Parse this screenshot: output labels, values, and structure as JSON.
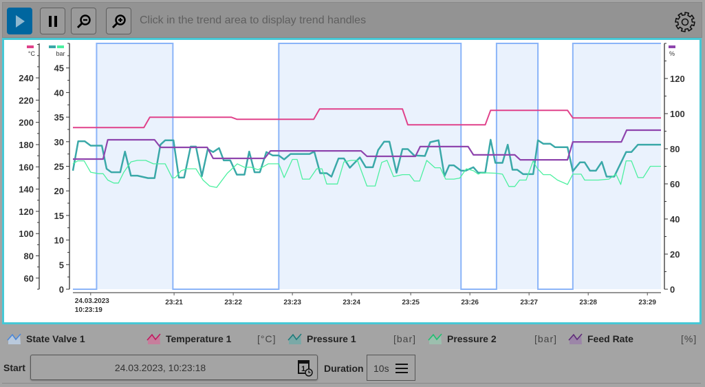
{
  "toolbar": {
    "play_icon": "play-icon",
    "pause_icon": "pause-icon",
    "zoom_out_icon": "zoom-out-icon",
    "zoom_in_icon": "zoom-in-icon",
    "hint": "Click in the trend area to display trend handles",
    "settings_icon": "gear-icon",
    "accent": "#00669f"
  },
  "chart_data": {
    "type": "line",
    "x_ticks": [
      "23:21",
      "23:22",
      "23:23",
      "23:24",
      "23:25",
      "23:26",
      "23:27",
      "23:28",
      "23:29"
    ],
    "x_first_label": [
      "24.03.2023",
      "10:23:19"
    ],
    "x_first_tick": "23:19.59",
    "xlim": [
      "23:19.29",
      "23:29.23"
    ],
    "axes": {
      "temperature": {
        "unit": "°C",
        "ticks": [
          60,
          80,
          100,
          120,
          140,
          160,
          180,
          200,
          220,
          240
        ],
        "ylim": [
          50,
          271
        ],
        "color": "#e0418a"
      },
      "pressure": {
        "unit": "bar",
        "ticks": [
          0,
          5,
          10,
          15,
          20,
          25,
          30,
          35,
          40,
          45
        ],
        "ylim": [
          0,
          50
        ],
        "colors": [
          "#3aa8a8",
          "#4cf0a0"
        ]
      },
      "percent": {
        "unit": "%",
        "ticks": [
          0,
          20,
          40,
          60,
          80,
          100,
          120
        ],
        "ylim": [
          0,
          140
        ],
        "color": "#8e44ad"
      }
    },
    "series": [
      {
        "name": "State Valve 1",
        "axis": "state",
        "color": "#8ab4f8",
        "fill": "#eaf2fd",
        "step": true,
        "points": [
          [
            "23:19.29",
            0
          ],
          [
            "23:19.69",
            1
          ],
          [
            "23:20.98",
            0
          ],
          [
            "23:22.77",
            1
          ],
          [
            "23:25.85",
            0
          ],
          [
            "23:26.45",
            1
          ],
          [
            "23:27.15",
            0
          ],
          [
            "23:27.74",
            1
          ],
          [
            "23:29.23",
            1
          ]
        ]
      },
      {
        "name": "Temperature 1",
        "axis": "temperature",
        "color": "#e0418a",
        "points": [
          [
            "23:19.29",
            195.3
          ],
          [
            "23:20.49",
            195.3
          ],
          [
            "23:20.59",
            204.6
          ],
          [
            "23:21.97",
            204.6
          ],
          [
            "23:22.06",
            202.8
          ],
          [
            "23:23.36",
            202.8
          ],
          [
            "23:23.46",
            212.0
          ],
          [
            "23:24.86",
            212.0
          ],
          [
            "23:24.95",
            197.8
          ],
          [
            "23:26.26",
            197.8
          ],
          [
            "23:26.35",
            210.8
          ],
          [
            "23:27.65",
            210.8
          ],
          [
            "23:27.74",
            204.0
          ],
          [
            "23:29.23",
            204.0
          ]
        ]
      },
      {
        "name": "Pressure 1",
        "axis": "pressure",
        "color": "#3aa8a8",
        "points": [
          [
            "23:19.29",
            24.1
          ],
          [
            "23:19.38",
            30.1
          ],
          [
            "23:19.49",
            30.1
          ],
          [
            "23:19.59",
            29.2
          ],
          [
            "23:19.78",
            29.2
          ],
          [
            "23:19.86",
            24.5
          ],
          [
            "23:19.94",
            23.8
          ],
          [
            "23:20.09",
            23.8
          ],
          [
            "23:20.17",
            28.0
          ],
          [
            "23:20.27",
            23.1
          ],
          [
            "23:20.38",
            23.1
          ],
          [
            "23:20.56",
            22.6
          ],
          [
            "23:20.67",
            22.6
          ],
          [
            "23:20.77",
            29.4
          ],
          [
            "23:20.85",
            30.3
          ],
          [
            "23:20.99",
            30.3
          ],
          [
            "23:21.08",
            22.7
          ],
          [
            "23:21.17",
            22.7
          ],
          [
            "23:21.28",
            29.0
          ],
          [
            "23:21.37",
            29.0
          ],
          [
            "23:21.47",
            23.0
          ],
          [
            "23:21.57",
            28.5
          ],
          [
            "23:21.66",
            27.9
          ],
          [
            "23:21.76",
            28.7
          ],
          [
            "23:21.84",
            26.2
          ],
          [
            "23:21.95",
            26.2
          ],
          [
            "23:22.06",
            23.3
          ],
          [
            "23:22.19",
            23.3
          ],
          [
            "23:22.27",
            28.0
          ],
          [
            "23:22.36",
            23.8
          ],
          [
            "23:22.45",
            23.8
          ],
          [
            "23:22.56",
            27.9
          ],
          [
            "23:22.67",
            27.2
          ],
          [
            "23:22.77",
            27.2
          ],
          [
            "23:22.86",
            26.4
          ],
          [
            "23:22.97",
            27.5
          ],
          [
            "23:23.29",
            27.5
          ],
          [
            "23:23.37",
            28.0
          ],
          [
            "23:23.47",
            23.6
          ],
          [
            "23:23.58",
            23.6
          ],
          [
            "23:23.66",
            22.9
          ],
          [
            "23:23.78",
            26.6
          ],
          [
            "23:23.87",
            26.6
          ],
          [
            "23:23.97",
            24.7
          ],
          [
            "23:24.01",
            25.2
          ],
          [
            "23:24.14",
            26.8
          ],
          [
            "23:24.24",
            24.8
          ],
          [
            "23:24.36",
            24.8
          ],
          [
            "23:24.45",
            28.3
          ],
          [
            "23:24.55",
            30.0
          ],
          [
            "23:24.64",
            30.0
          ],
          [
            "23:24.76",
            23.7
          ],
          [
            "23:24.86",
            28.5
          ],
          [
            "23:24.95",
            28.5
          ],
          [
            "23:25.06",
            27.2
          ],
          [
            "23:25.24",
            27.1
          ],
          [
            "23:25.33",
            29.9
          ],
          [
            "23:25.47",
            30.3
          ],
          [
            "23:25.57",
            23.0
          ],
          [
            "23:25.65",
            25.2
          ],
          [
            "23:25.73",
            25.2
          ],
          [
            "23:25.85",
            24.1
          ],
          [
            "23:25.93",
            24.1
          ],
          [
            "23:26.06",
            24.8
          ],
          [
            "23:26.14",
            23.7
          ],
          [
            "23:26.26",
            23.7
          ],
          [
            "23:26.35",
            30.4
          ],
          [
            "23:26.43",
            25.7
          ],
          [
            "23:26.55",
            25.7
          ],
          [
            "23:26.64",
            29.4
          ],
          [
            "23:26.72",
            24.3
          ],
          [
            "23:26.80",
            24.3
          ],
          [
            "23:26.90",
            23.4
          ],
          [
            "23:27.07",
            23.4
          ],
          [
            "23:27.15",
            30.3
          ],
          [
            "23:27.24",
            29.6
          ],
          [
            "23:27.36",
            29.6
          ],
          [
            "23:27.44",
            28.9
          ],
          [
            "23:27.65",
            28.9
          ],
          [
            "23:27.74",
            24.0
          ],
          [
            "23:27.86",
            25.8
          ],
          [
            "23:27.94",
            25.8
          ],
          [
            "23:28.03",
            24.1
          ],
          [
            "23:28.13",
            24.1
          ],
          [
            "23:28.23",
            25.9
          ],
          [
            "23:28.31",
            22.9
          ],
          [
            "23:28.44",
            22.9
          ],
          [
            "23:28.64",
            27.9
          ],
          [
            "23:28.73",
            27.9
          ],
          [
            "23:28.84",
            29.4
          ],
          [
            "23:29.23",
            29.4
          ]
        ]
      },
      {
        "name": "Pressure 2",
        "axis": "pressure",
        "color": "#4cf0a0",
        "points": [
          [
            "23:19.29",
            25.5
          ],
          [
            "23:19.37",
            26.1
          ],
          [
            "23:19.48",
            26.1
          ],
          [
            "23:19.59",
            23.8
          ],
          [
            "23:19.72",
            23.5
          ],
          [
            "23:19.80",
            23.5
          ],
          [
            "23:19.88",
            22.2
          ],
          [
            "23:19.98",
            21.6
          ],
          [
            "23:20.06",
            21.6
          ],
          [
            "23:20.15",
            23.8
          ],
          [
            "23:20.27",
            25.9
          ],
          [
            "23:20.38",
            26.2
          ],
          [
            "23:20.52",
            26.2
          ],
          [
            "23:20.65",
            25.5
          ],
          [
            "23:20.85",
            25.5
          ],
          [
            "23:20.97",
            22.6
          ],
          [
            "23:21.02",
            22.7
          ],
          [
            "23:21.12",
            24.1
          ],
          [
            "23:21.22",
            24.5
          ],
          [
            "23:21.37",
            24.5
          ],
          [
            "23:21.49",
            22.2
          ],
          [
            "23:21.60",
            21.0
          ],
          [
            "23:21.72",
            20.7
          ],
          [
            "23:21.90",
            23.6
          ],
          [
            "23:22.07",
            25.5
          ],
          [
            "23:22.19",
            24.8
          ],
          [
            "23:22.30",
            24.8
          ],
          [
            "23:22.42",
            24.3
          ],
          [
            "23:22.59",
            25.5
          ],
          [
            "23:22.77",
            25.5
          ],
          [
            "23:22.86",
            22.7
          ],
          [
            "23:23.00",
            26.4
          ],
          [
            "23:23.08",
            26.4
          ],
          [
            "23:23.17",
            22.4
          ],
          [
            "23:23.29",
            22.4
          ],
          [
            "23:23.41",
            24.5
          ],
          [
            "23:23.50",
            24.5
          ],
          [
            "23:23.58",
            21.4
          ],
          [
            "23:23.76",
            21.4
          ],
          [
            "23:23.87",
            25.9
          ],
          [
            "23:23.99",
            26.2
          ],
          [
            "23:24.10",
            26.2
          ],
          [
            "23:24.26",
            21.0
          ],
          [
            "23:24.40",
            21.0
          ],
          [
            "23:24.51",
            25.8
          ],
          [
            "23:24.60",
            26.2
          ],
          [
            "23:24.71",
            22.9
          ],
          [
            "23:24.86",
            23.3
          ],
          [
            "23:24.98",
            23.3
          ],
          [
            "23:25.06",
            22.0
          ],
          [
            "23:25.15",
            22.0
          ],
          [
            "23:25.27",
            26.2
          ],
          [
            "23:25.41",
            24.7
          ],
          [
            "23:25.50",
            24.7
          ],
          [
            "23:25.59",
            22.4
          ],
          [
            "23:25.73",
            22.4
          ],
          [
            "23:25.83",
            22.6
          ],
          [
            "23:25.94",
            24.5
          ],
          [
            "23:26.06",
            24.1
          ],
          [
            "23:26.14",
            23.4
          ],
          [
            "23:26.20",
            23.7
          ],
          [
            "23:26.43",
            23.6
          ],
          [
            "23:26.55",
            23.4
          ],
          [
            "23:26.66",
            20.9
          ],
          [
            "23:26.76",
            20.9
          ],
          [
            "23:26.84",
            22.2
          ],
          [
            "23:26.95",
            22.2
          ],
          [
            "23:27.07",
            26.1
          ],
          [
            "23:27.13",
            24.7
          ],
          [
            "23:27.24",
            23.3
          ],
          [
            "23:27.36",
            23.3
          ],
          [
            "23:27.48",
            22.2
          ],
          [
            "23:27.65",
            21.3
          ],
          [
            "23:27.74",
            23.4
          ],
          [
            "23:27.88",
            23.4
          ],
          [
            "23:27.94",
            22.2
          ],
          [
            "23:28.17",
            22.2
          ],
          [
            "23:28.35",
            22.4
          ],
          [
            "23:28.47",
            23.4
          ],
          [
            "23:28.55",
            21.3
          ],
          [
            "23:28.64",
            26.1
          ],
          [
            "23:28.73",
            26.1
          ],
          [
            "23:28.84",
            22.7
          ],
          [
            "23:28.93",
            22.7
          ],
          [
            "23:29.05",
            25.0
          ],
          [
            "23:29.23",
            25.0
          ]
        ]
      },
      {
        "name": "Feed Rate",
        "axis": "percent",
        "color": "#8e44ad",
        "points": [
          [
            "23:19.29",
            74.1
          ],
          [
            "23:19.80",
            74.1
          ],
          [
            "23:19.88",
            85.1
          ],
          [
            "23:20.67",
            85.1
          ],
          [
            "23:20.77",
            80.8
          ],
          [
            "23:21.56",
            80.8
          ],
          [
            "23:21.66",
            74.5
          ],
          [
            "23:22.53",
            74.5
          ],
          [
            "23:22.63",
            78.8
          ],
          [
            "23:24.16",
            78.8
          ],
          [
            "23:24.26",
            75.7
          ],
          [
            "23:25.08",
            75.7
          ],
          [
            "23:25.16",
            81.2
          ],
          [
            "23:25.97",
            81.2
          ],
          [
            "23:26.06",
            76.5
          ],
          [
            "23:26.76",
            76.5
          ],
          [
            "23:26.85",
            73.7
          ],
          [
            "23:27.65",
            73.7
          ],
          [
            "23:27.74",
            83.9
          ],
          [
            "23:28.56",
            83.9
          ],
          [
            "23:28.65",
            90.6
          ],
          [
            "23:29.23",
            90.6
          ]
        ]
      }
    ]
  },
  "legend": [
    {
      "label": "State Valve 1",
      "unit": "",
      "color": "#4a86d8",
      "fill": "#b9c9dc"
    },
    {
      "label": "Temperature 1",
      "unit": "[°C]",
      "color": "#c0185f",
      "fill": "#c77e9c"
    },
    {
      "label": "Pressure 1",
      "unit": "[bar]",
      "color": "#1e7a7a",
      "fill": "#7aa9a7"
    },
    {
      "label": "Pressure 2",
      "unit": "[bar]",
      "color": "#1fbf70",
      "fill": "#9cbfae"
    },
    {
      "label": "Feed Rate",
      "unit": "[%]",
      "color": "#5e2b78",
      "fill": "#9c86a8"
    }
  ],
  "controls": {
    "start_label": "Start",
    "start_value": "24.03.2023, 10:23:18",
    "calendar_icon": "calendar-clock-icon",
    "duration_label": "Duration",
    "duration_value": "10s",
    "menu_icon": "menu-icon"
  }
}
